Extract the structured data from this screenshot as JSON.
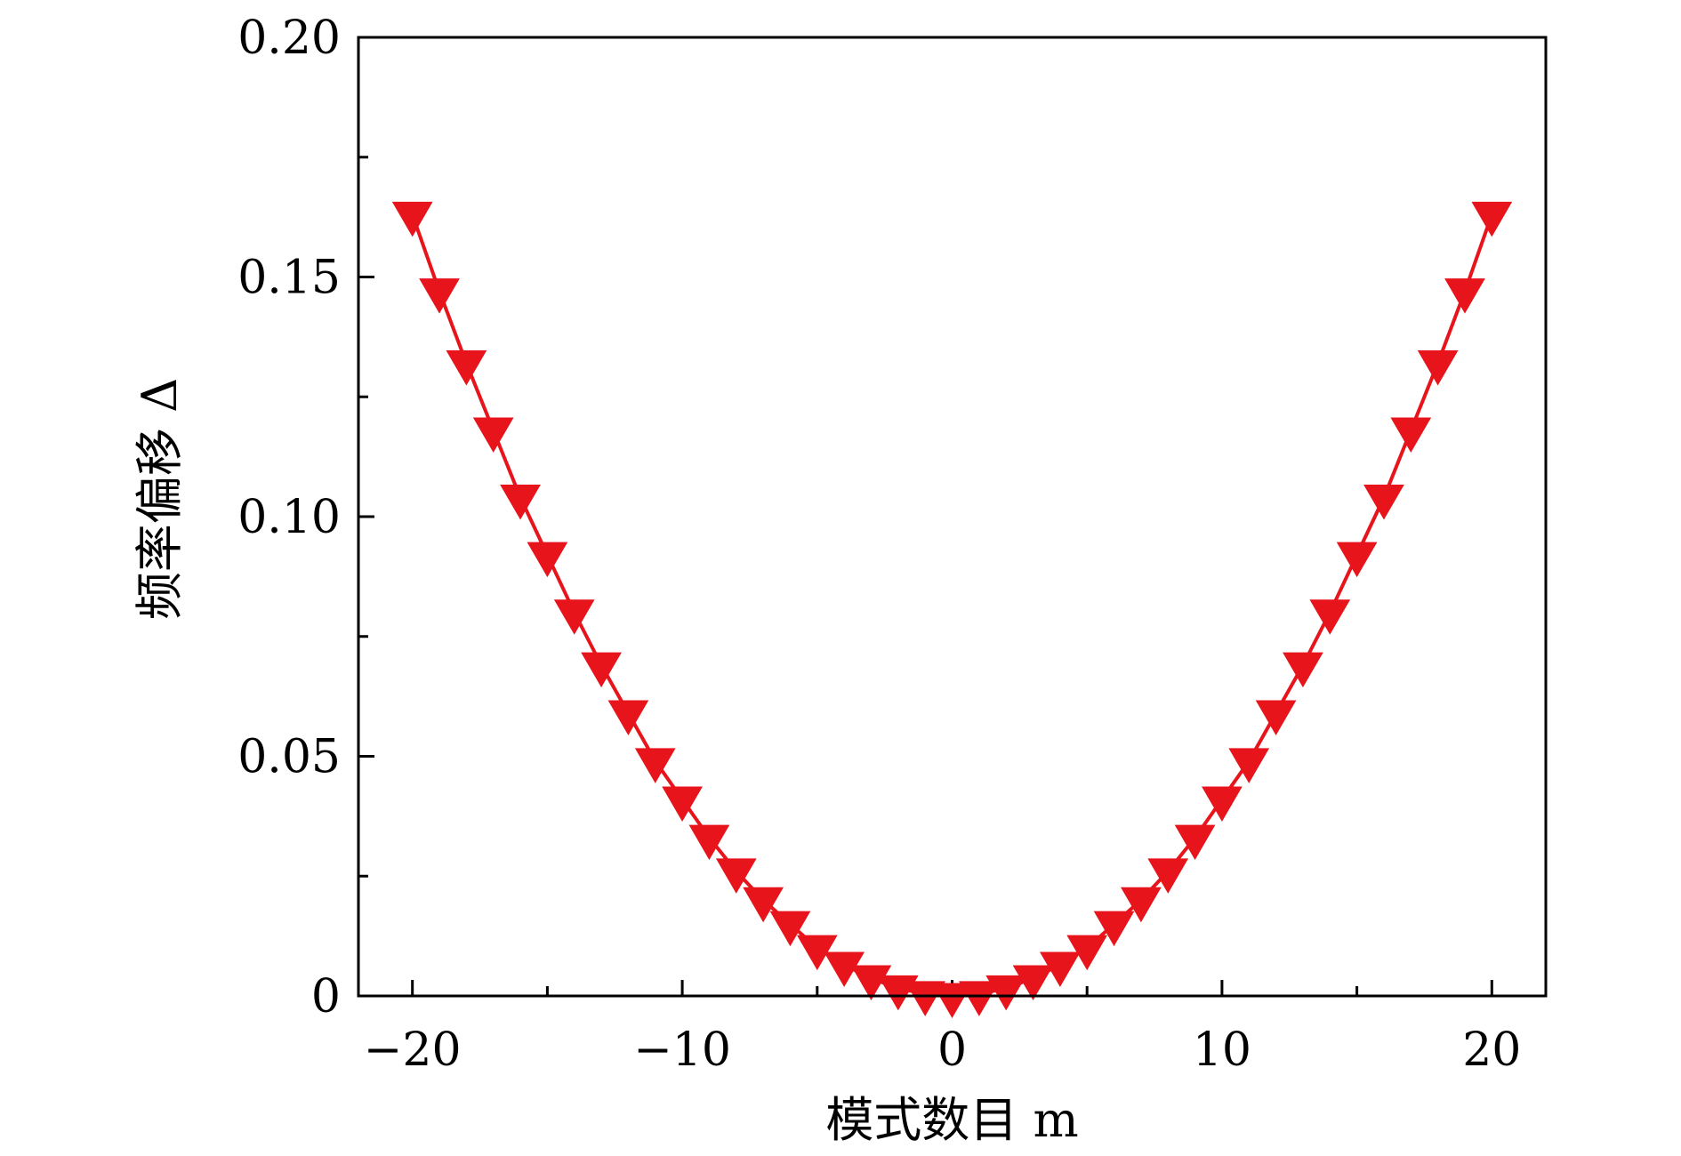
{
  "chart_data": {
    "type": "line",
    "title": "",
    "xlabel": "模式数目 m",
    "ylabel": "频率偏移 Δ",
    "xlim": [
      -22,
      22
    ],
    "ylim": [
      0,
      0.2
    ],
    "x_ticks": [
      -20,
      -10,
      0,
      10,
      20
    ],
    "x_tick_labels": [
      "−20",
      "−10",
      "0",
      "10",
      "20"
    ],
    "x_minor_ticks": [
      -15,
      -5,
      5,
      15
    ],
    "y_ticks": [
      0,
      0.05,
      0.1,
      0.15,
      0.2
    ],
    "y_tick_labels": [
      "0",
      "0.05",
      "0.10",
      "0.15",
      "0.20"
    ],
    "y_minor_ticks": [
      0.025,
      0.075,
      0.125,
      0.175
    ],
    "grid": false,
    "legend": "none",
    "marker": "triangle-down",
    "color": "#e8141c",
    "series": [
      {
        "x": [
          -20,
          -19,
          -18,
          -17,
          -16,
          -15,
          -14,
          -13,
          -12,
          -11,
          -10,
          -9,
          -8,
          -7,
          -6,
          -5,
          -4,
          -3,
          -2,
          -1,
          0,
          1,
          2,
          3,
          4,
          5,
          6,
          7,
          8,
          9,
          10,
          11,
          12,
          13,
          14,
          15,
          16,
          17,
          18,
          19,
          20
        ],
        "values": [
          0.163,
          0.147,
          0.132,
          0.118,
          0.104,
          0.092,
          0.08,
          0.069,
          0.059,
          0.049,
          0.041,
          0.033,
          0.026,
          0.02,
          0.015,
          0.01,
          0.0065,
          0.0037,
          0.0016,
          0.0004,
          0,
          0.0004,
          0.0016,
          0.0037,
          0.0065,
          0.01,
          0.015,
          0.02,
          0.026,
          0.033,
          0.041,
          0.049,
          0.059,
          0.069,
          0.08,
          0.092,
          0.104,
          0.118,
          0.132,
          0.147,
          0.163
        ]
      }
    ]
  }
}
